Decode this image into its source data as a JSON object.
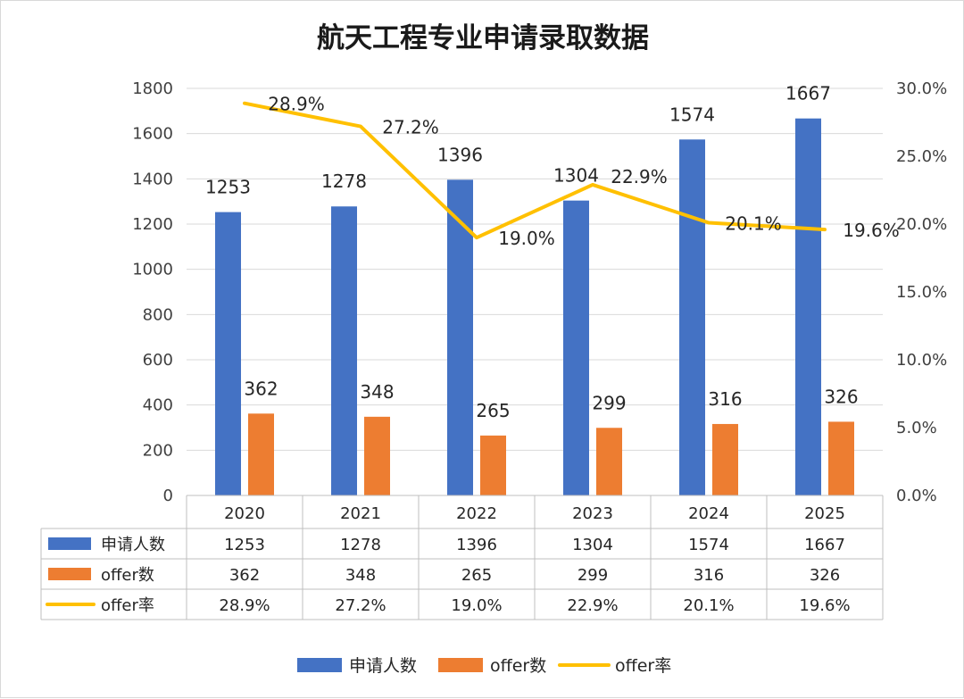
{
  "chart_data": {
    "type": "bar",
    "title": "航天工程专业申请录取数据",
    "categories": [
      "2020",
      "2021",
      "2022",
      "2023",
      "2024",
      "2025"
    ],
    "series": [
      {
        "name": "申请人数",
        "kind": "bar",
        "axis": "left",
        "color": "#4472C4",
        "values": [
          1253,
          1278,
          1396,
          1304,
          1574,
          1667
        ],
        "labels": [
          "1253",
          "1278",
          "1396",
          "1304",
          "1574",
          "1667"
        ]
      },
      {
        "name": "offer数",
        "kind": "bar",
        "axis": "left",
        "color": "#ED7D31",
        "values": [
          362,
          348,
          265,
          299,
          316,
          326
        ],
        "labels": [
          "362",
          "348",
          "265",
          "299",
          "316",
          "326"
        ]
      },
      {
        "name": "offer率",
        "kind": "line",
        "axis": "right",
        "color": "#FFC000",
        "values": [
          28.9,
          27.2,
          19.0,
          22.9,
          20.1,
          19.6
        ],
        "labels": [
          "28.9%",
          "27.2%",
          "19.0%",
          "22.9%",
          "20.1%",
          "19.6%"
        ]
      }
    ],
    "y_left": {
      "range": [
        0,
        1800
      ],
      "ticks": [
        "0",
        "200",
        "400",
        "600",
        "800",
        "1000",
        "1200",
        "1400",
        "1600",
        "1800"
      ]
    },
    "y_right": {
      "range": [
        0,
        30
      ],
      "ticks": [
        "0.0%",
        "5.0%",
        "10.0%",
        "15.0%",
        "20.0%",
        "25.0%",
        "30.0%"
      ]
    },
    "grid": true,
    "legend_position": "bottom",
    "data_table": true
  }
}
